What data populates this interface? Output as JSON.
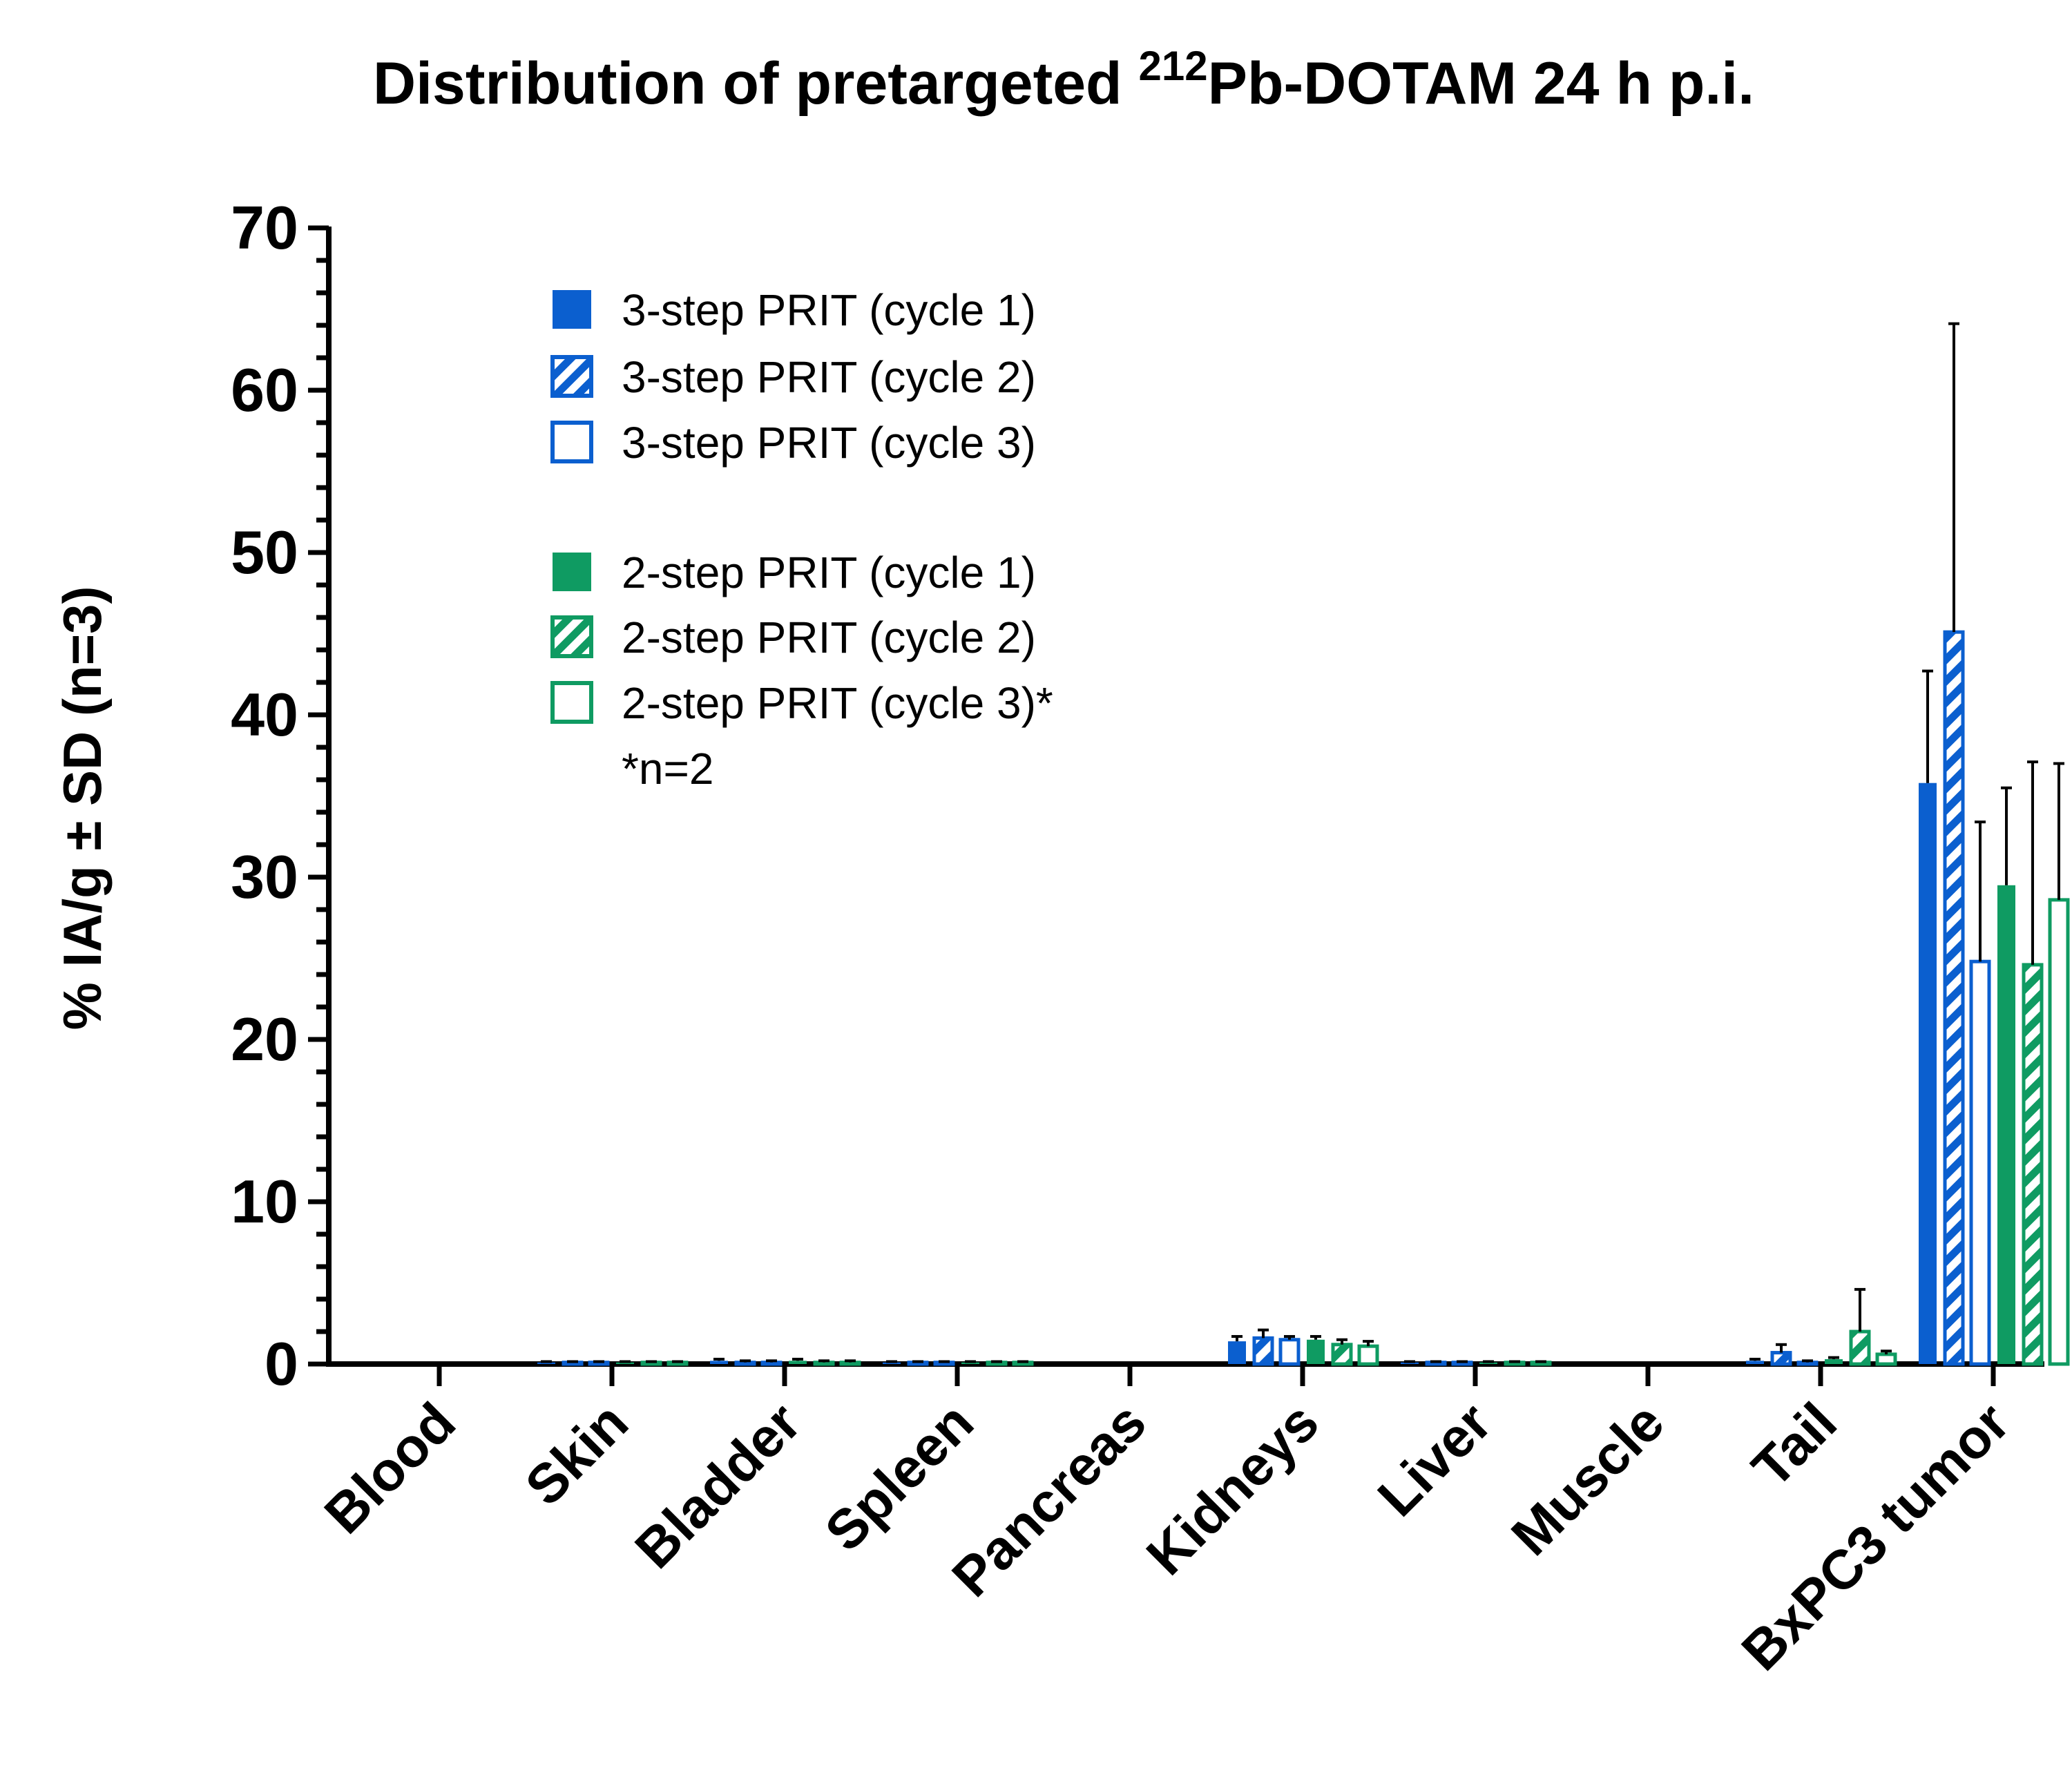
{
  "chart_data": {
    "type": "bar",
    "title_parts": [
      "Distribution of pretargeted ",
      "212",
      "Pb-DOTAM 24 h p.i."
    ],
    "ylabel": "% IA/g ± SD (n=3)",
    "xlabel": "",
    "ylim": [
      0,
      70
    ],
    "yticks": [
      "0",
      "10",
      "20",
      "30",
      "40",
      "50",
      "60",
      "70"
    ],
    "legend_position": "top-left",
    "legend_note": "*n=2",
    "colors": {
      "blue": "#0b5fcf",
      "green": "#0f9b62"
    },
    "categories": [
      "Blood",
      "Skin",
      "Bladder",
      "Spleen",
      "Pancreas",
      "Kidneys",
      "Liver",
      "Muscle",
      "Tail",
      "BxPC3 tumor"
    ],
    "series": [
      {
        "name": "3-step PRIT (cycle 1)",
        "color": "blue",
        "fill": "solid",
        "values": [
          0.0,
          0.1,
          0.2,
          0.1,
          0.0,
          1.4,
          0.1,
          0.0,
          0.2,
          35.8
        ],
        "errors": [
          0.0,
          0.05,
          0.1,
          0.05,
          0.0,
          0.3,
          0.05,
          0.0,
          0.1,
          6.9
        ]
      },
      {
        "name": "3-step PRIT (cycle 2)",
        "color": "blue",
        "fill": "hatch",
        "values": [
          0.0,
          0.1,
          0.1,
          0.1,
          0.0,
          1.6,
          0.1,
          0.0,
          0.7,
          45.1
        ],
        "errors": [
          0.0,
          0.05,
          0.1,
          0.05,
          0.0,
          0.5,
          0.05,
          0.0,
          0.5,
          19.0
        ]
      },
      {
        "name": "3-step PRIT (cycle 3)",
        "color": "blue",
        "fill": "outline",
        "values": [
          0.0,
          0.1,
          0.1,
          0.1,
          0.0,
          1.5,
          0.1,
          0.0,
          0.1,
          24.8
        ],
        "errors": [
          0.0,
          0.05,
          0.1,
          0.05,
          0.0,
          0.2,
          0.05,
          0.0,
          0.1,
          8.6
        ]
      },
      {
        "name": "2-step PRIT (cycle 1)",
        "color": "green",
        "fill": "solid",
        "values": [
          0.0,
          0.1,
          0.2,
          0.1,
          0.0,
          1.5,
          0.1,
          0.0,
          0.3,
          29.5
        ],
        "errors": [
          0.0,
          0.05,
          0.1,
          0.05,
          0.0,
          0.2,
          0.05,
          0.0,
          0.1,
          6.0
        ]
      },
      {
        "name": "2-step PRIT (cycle 2)",
        "color": "green",
        "fill": "hatch",
        "values": [
          0.0,
          0.1,
          0.1,
          0.1,
          0.0,
          1.2,
          0.1,
          0.0,
          2.0,
          24.6
        ],
        "errors": [
          0.0,
          0.05,
          0.1,
          0.05,
          0.0,
          0.3,
          0.05,
          0.0,
          2.6,
          12.5
        ]
      },
      {
        "name": "2-step PRIT (cycle 3)*",
        "color": "green",
        "fill": "outline",
        "values": [
          0.0,
          0.1,
          0.1,
          0.1,
          0.0,
          1.1,
          0.1,
          0.0,
          0.6,
          28.6
        ],
        "errors": [
          0.0,
          0.05,
          0.1,
          0.05,
          0.0,
          0.3,
          0.05,
          0.0,
          0.2,
          8.4
        ]
      }
    ]
  }
}
